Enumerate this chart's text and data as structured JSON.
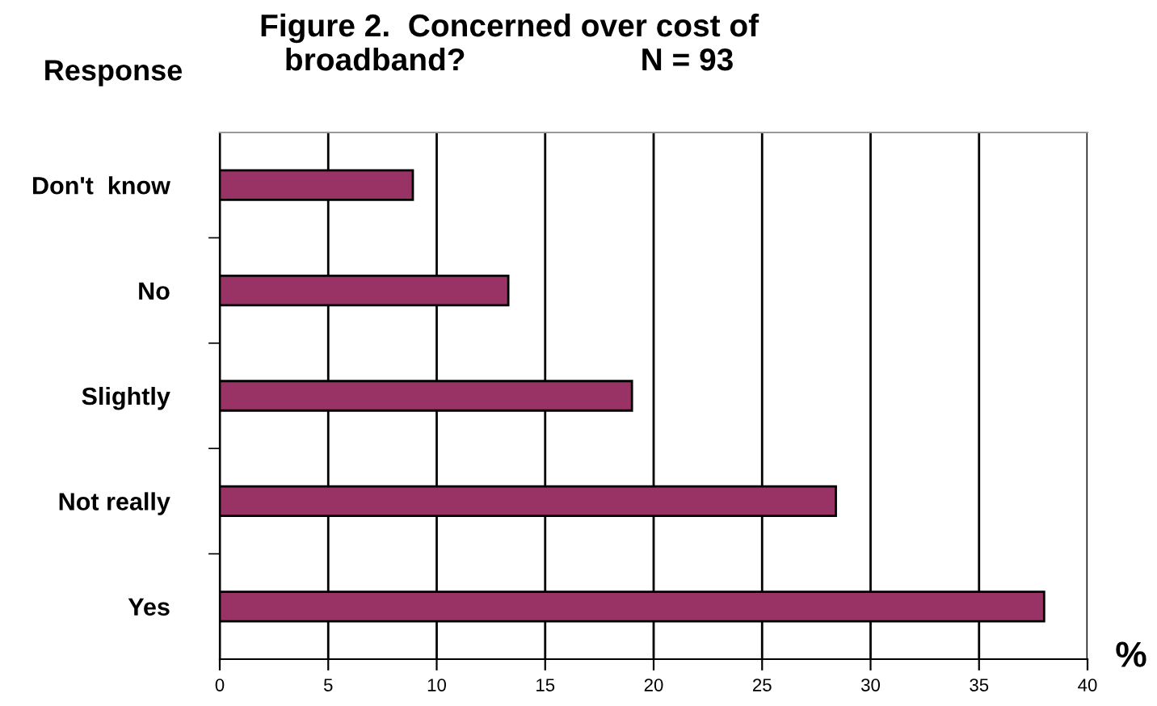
{
  "chart_data": {
    "type": "bar",
    "orientation": "horizontal",
    "title": "Figure 2.  Concerned over cost of\nbroadband?                    N = 93",
    "ylabel": "Response",
    "xlabel": "%",
    "categories": [
      "Don't  know",
      "No",
      "Slightly",
      "Not really",
      "Yes"
    ],
    "values": [
      8.9,
      13.3,
      19.0,
      28.4,
      38.0
    ],
    "color": "#993366",
    "xlim": [
      0,
      40
    ],
    "xticks": [
      0,
      5,
      10,
      15,
      20,
      25,
      30,
      35,
      40
    ],
    "grid": "x"
  }
}
